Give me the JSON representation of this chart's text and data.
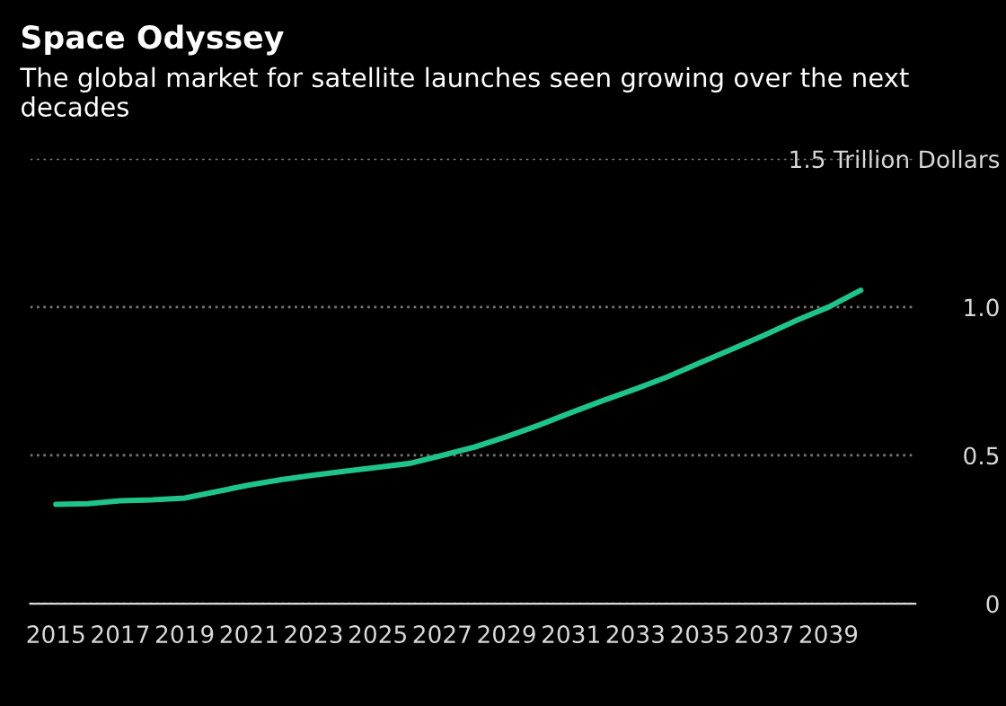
{
  "chart_data": {
    "type": "line",
    "title": "Space Odyssey",
    "subtitle": "The global market for satellite launches seen growing over the next decades",
    "x": [
      2015,
      2016,
      2017,
      2018,
      2019,
      2020,
      2021,
      2022,
      2023,
      2024,
      2025,
      2026,
      2027,
      2028,
      2029,
      2030,
      2031,
      2032,
      2033,
      2034,
      2035,
      2036,
      2037,
      2038,
      2039,
      2040
    ],
    "series": [
      {
        "color": "#1fc48a",
        "values": [
          0.335,
          0.337,
          0.347,
          0.35,
          0.356,
          0.378,
          0.4,
          0.418,
          0.433,
          0.447,
          0.46,
          0.473,
          0.5,
          0.528,
          0.563,
          0.602,
          0.644,
          0.685,
          0.724,
          0.765,
          0.812,
          0.858,
          0.905,
          0.955,
          1.0,
          1.057
        ]
      }
    ],
    "xlim": [
      2014.2,
      2041.7
    ],
    "xticks": [
      2015,
      2017,
      2019,
      2021,
      2023,
      2025,
      2027,
      2029,
      2031,
      2033,
      2035,
      2037,
      2039
    ],
    "ylim": [
      0,
      1.5
    ],
    "yticks": [
      0,
      0.5,
      {
        "value": 1.0,
        "label": "1.0"
      },
      {
        "value": 1.5,
        "label": "1.5 Trillion Dollars"
      }
    ],
    "grid": "y",
    "line_style": "solid",
    "marker": "none"
  }
}
